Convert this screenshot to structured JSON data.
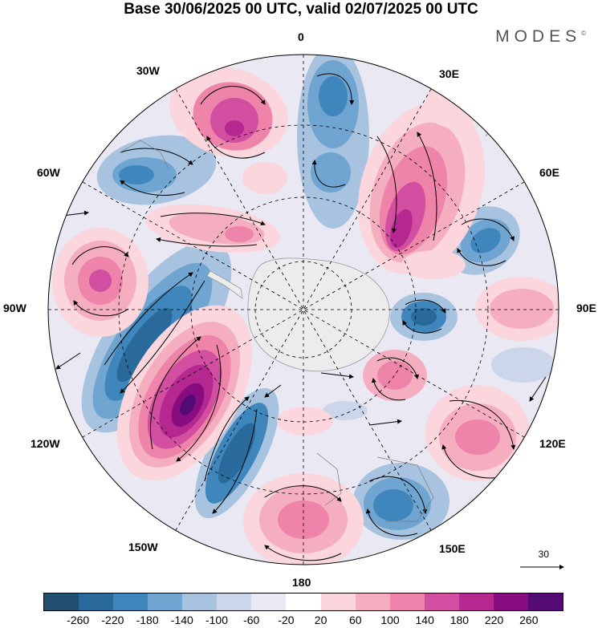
{
  "header": {
    "title": "Base 30/06/2025 00 UTC, valid 02/07/2025 00 UTC",
    "brand": "MODES",
    "brand_mark": "©"
  },
  "map": {
    "projection": "south-polar-stereographic",
    "longitude_labels": {
      "lon_0": "0",
      "lon_30e": "30E",
      "lon_60e": "60E",
      "lon_90e": "90E",
      "lon_120e": "120E",
      "lon_150e": "150E",
      "lon_180": "180",
      "lon_150w": "150W",
      "lon_120w": "120W",
      "lon_90w": "90W",
      "lon_60w": "60W",
      "lon_30w": "30W"
    },
    "land_color": "#ececec",
    "grid_style": "dashed"
  },
  "reference_vector": {
    "label": "30"
  },
  "colorbar": {
    "colors": [
      "#1f4e6e",
      "#2a6a9b",
      "#3f86bd",
      "#6fa5d0",
      "#a8c3e0",
      "#ccd6ea",
      "#e9e8f3",
      "#ffffff",
      "#fbd6dd",
      "#f5aebf",
      "#ee84a9",
      "#d24ea0",
      "#b5288f",
      "#860c80",
      "#540a73"
    ],
    "tick_labels": [
      "-260",
      "-220",
      "-180",
      "-140",
      "-100",
      "-60",
      "-20",
      "20",
      "60",
      "100",
      "140",
      "180",
      "220",
      "260"
    ]
  }
}
